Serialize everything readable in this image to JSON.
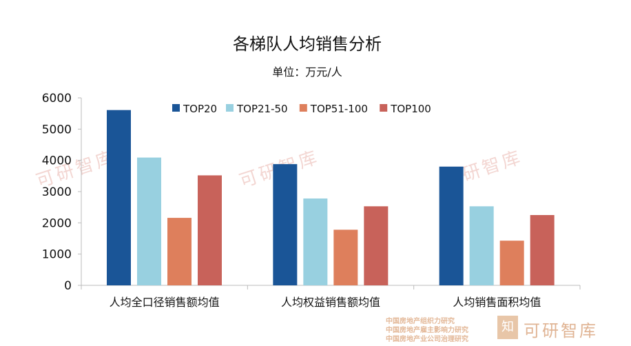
{
  "chart_data": {
    "type": "bar",
    "title": "各梯队人均销售分析",
    "subtitle": "单位：万元/人",
    "xlabel": "",
    "ylabel": "",
    "ylim": [
      0,
      6000
    ],
    "yticks": [
      "0",
      "1000",
      "2000",
      "3000",
      "4000",
      "5000",
      "6000"
    ],
    "ytick_values": [
      0,
      1000,
      2000,
      3000,
      4000,
      5000,
      6000
    ],
    "categories": [
      "人均全口径销售额均值",
      "人均权益销售额均值",
      "人均销售面积均值"
    ],
    "legend_position": "top",
    "grid": false,
    "series": [
      {
        "name": "TOP20",
        "color": "#1a5597",
        "values": [
          5610,
          3880,
          3800
        ]
      },
      {
        "name": "TOP21-50",
        "color": "#98d0e0",
        "values": [
          4090,
          2780,
          2530
        ]
      },
      {
        "name": "TOP51-100",
        "color": "#de7f5c",
        "values": [
          2160,
          1780,
          1430
        ]
      },
      {
        "name": "TOP100",
        "color": "#c8625a",
        "values": [
          3520,
          2530,
          2250
        ]
      }
    ]
  },
  "watermark": {
    "brand": "可研智库",
    "logo_glyph": "知",
    "lines": [
      "中国房地产组织力研究",
      "中国房地产雇主影响力研究",
      "中国房地产业公司治理研究"
    ]
  }
}
